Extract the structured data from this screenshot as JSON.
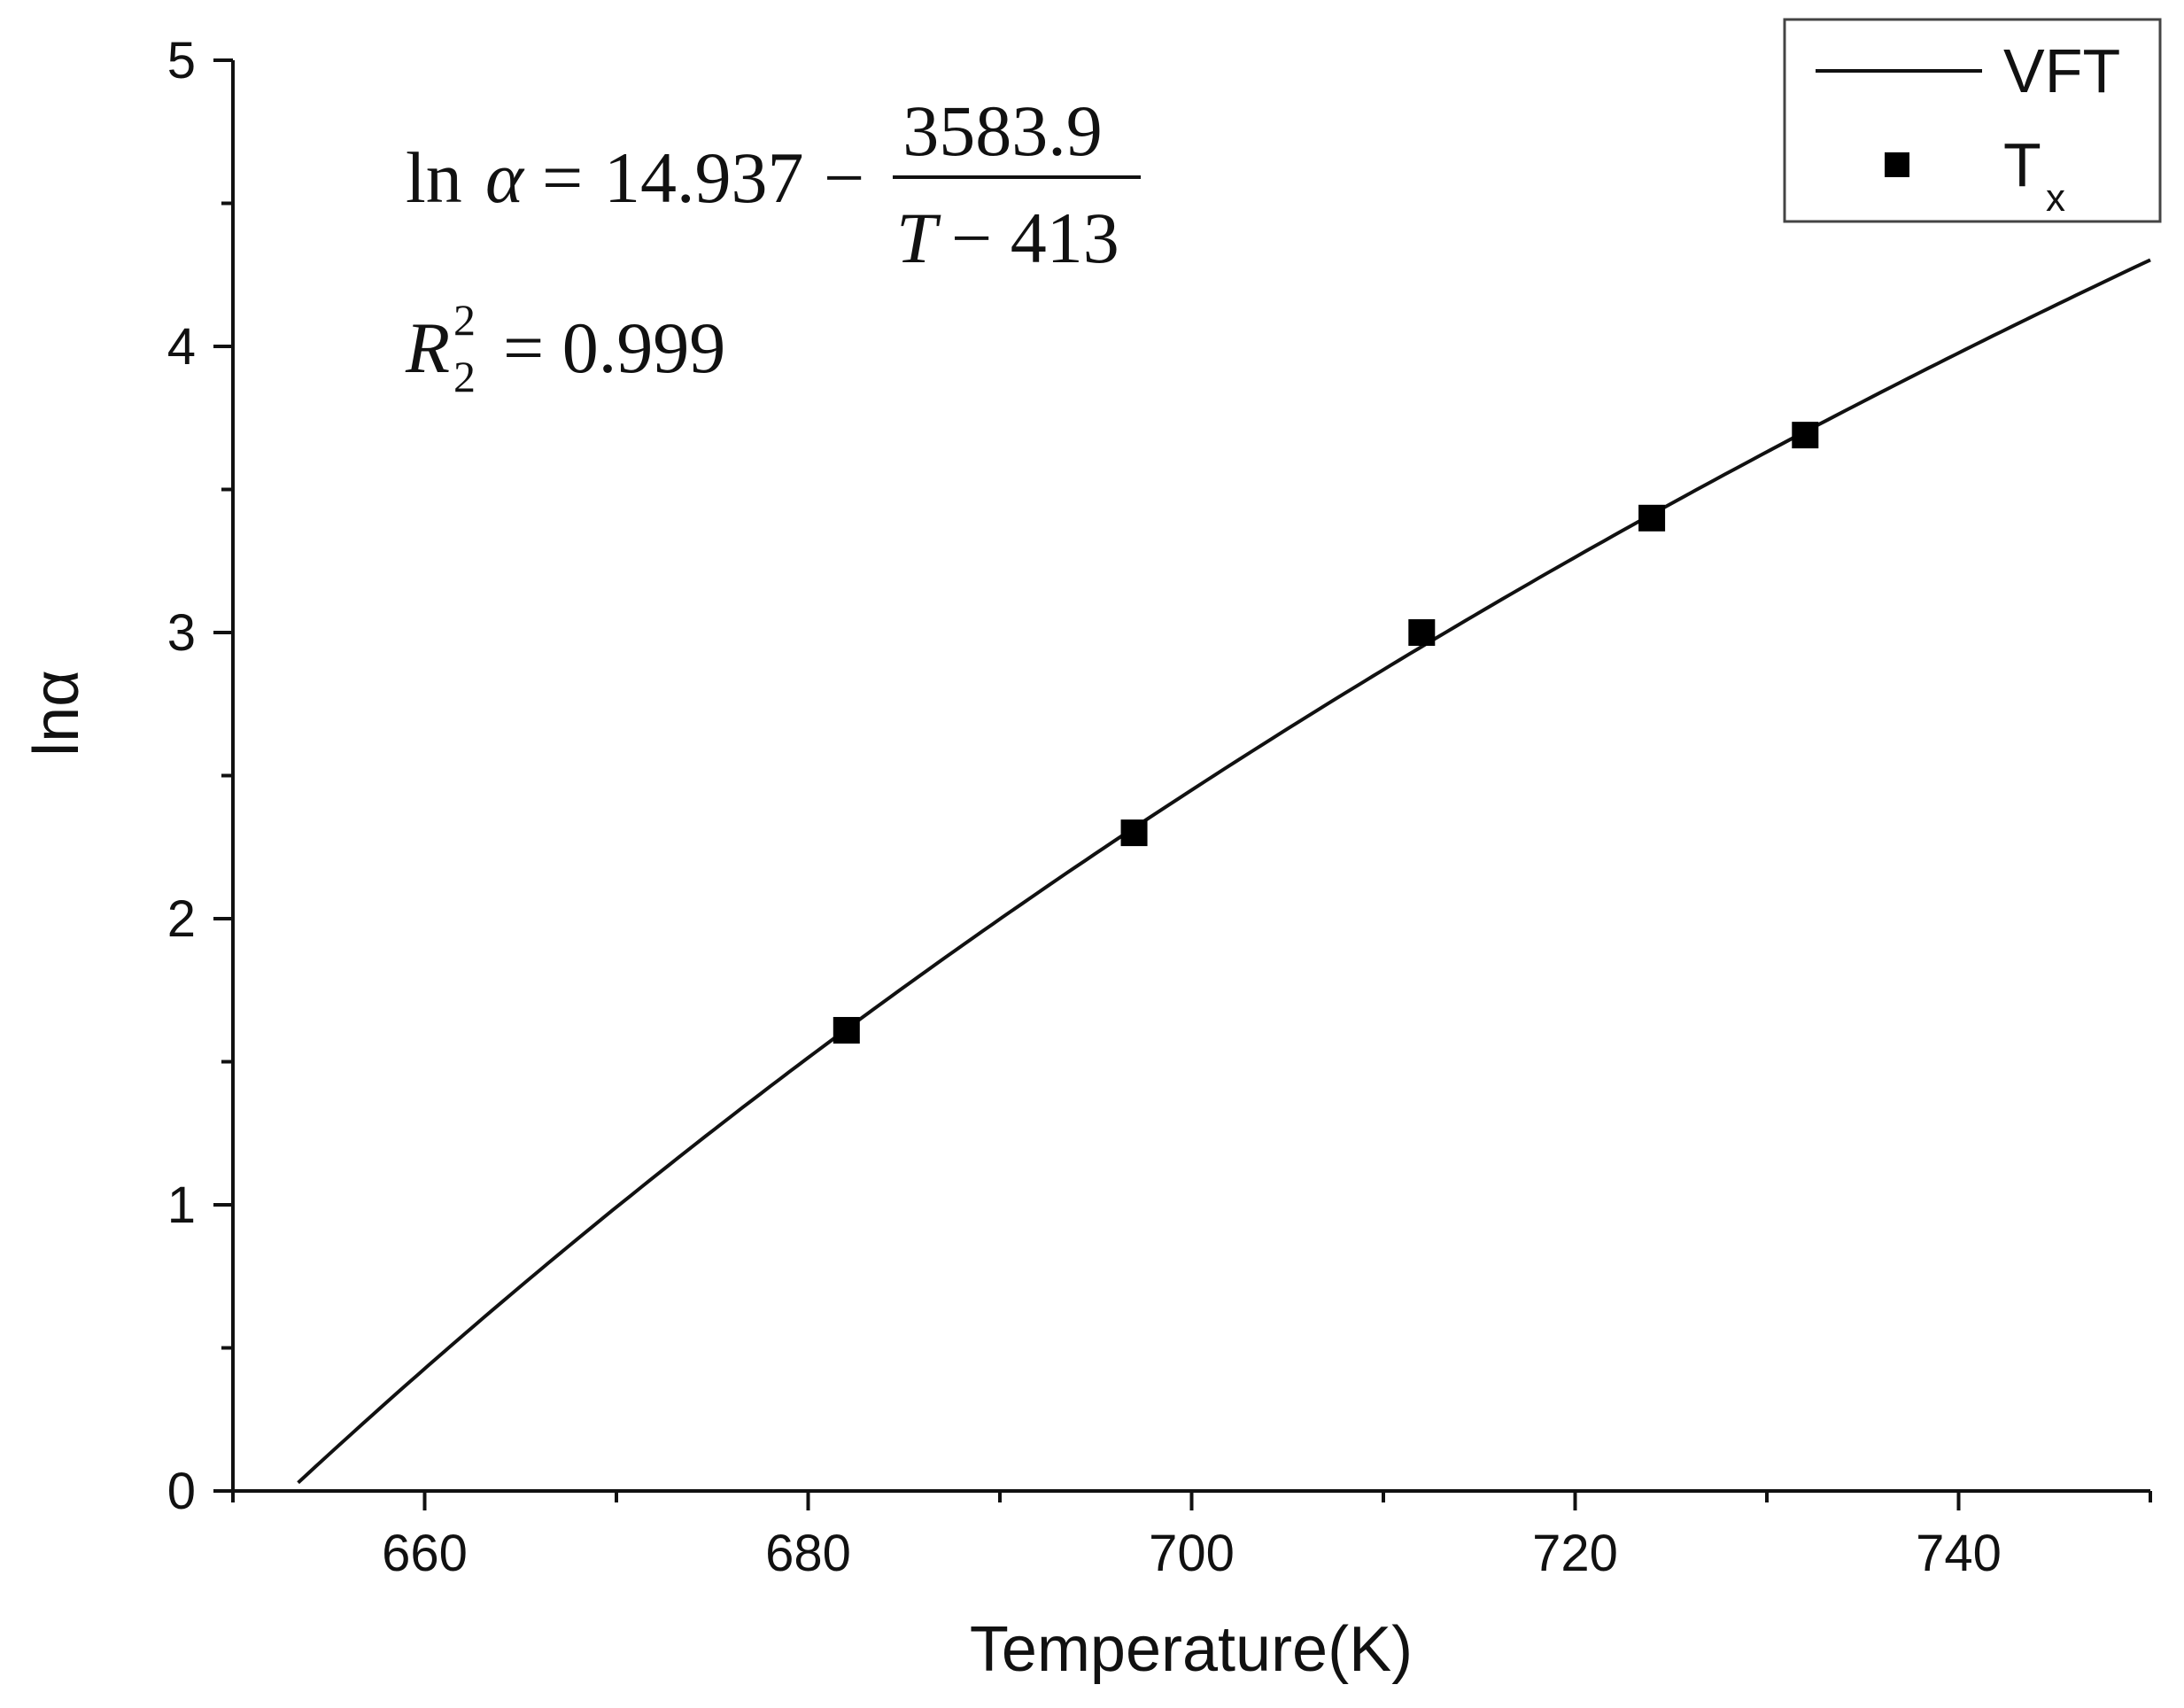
{
  "chart_data": {
    "type": "scatter",
    "xlabel": "Temperature(K)",
    "ylabel": "lnα",
    "xlim": [
      650,
      750
    ],
    "ylim": [
      0,
      5
    ],
    "x_ticks": [
      660,
      680,
      700,
      720,
      740
    ],
    "x_tick_labels": [
      "660",
      "680",
      "700",
      "720",
      "740"
    ],
    "y_ticks": [
      0,
      1,
      2,
      3,
      4,
      5
    ],
    "y_tick_labels": [
      "0",
      "1",
      "2",
      "3",
      "4",
      "5"
    ],
    "x_minor_step": 10,
    "y_minor_step": 0.5,
    "grid": false,
    "legend_position": "top-right",
    "series": [
      {
        "name": "VFT",
        "kind": "line",
        "color": "#111111",
        "model": {
          "A": 14.937,
          "B": 3583.9,
          "T0": 413
        },
        "x_range": [
          653.4,
          750
        ]
      },
      {
        "name": "T",
        "name_subscript": "x",
        "kind": "scatter",
        "marker": "square",
        "color": "#000000",
        "x": [
          682,
          697,
          712,
          724,
          732
        ],
        "y": [
          1.61,
          2.3,
          3.0,
          3.4,
          3.69
        ]
      }
    ],
    "annotations": {
      "eq_lhs": "ln",
      "eq_alpha": "α",
      "eq_equals": "=",
      "eq_const": "14.937",
      "eq_minus": "−",
      "eq_numerator": "3583.9",
      "eq_denominator_T": "T",
      "eq_denominator_rest": "− 413",
      "r_symbol": "R",
      "r_sub": "2",
      "r_sup": "2",
      "r_value": "= 0.999"
    }
  }
}
